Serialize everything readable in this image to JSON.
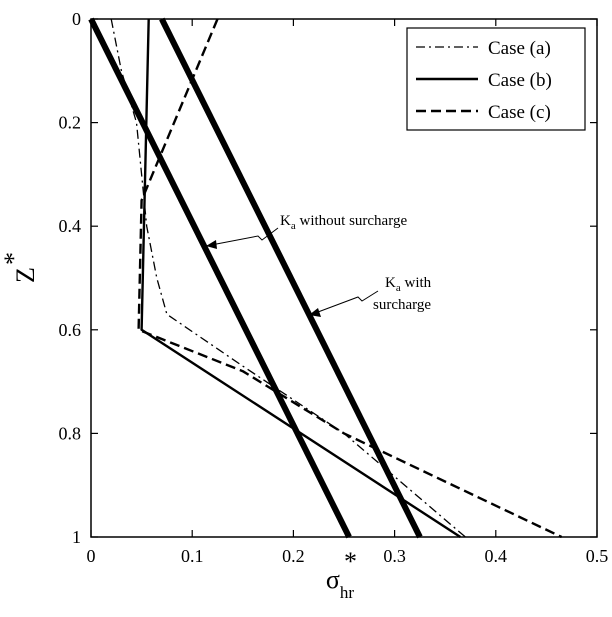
{
  "chart_data": {
    "type": "line",
    "xlabel": "σ",
    "xlabel_super": "*",
    "xlabel_sub": "hr",
    "ylabel": "Z",
    "ylabel_super": "*",
    "xlim": [
      0,
      0.5
    ],
    "ylim": [
      0,
      1
    ],
    "y_inverted": true,
    "x_ticks": [
      0,
      0.1,
      0.2,
      0.3,
      0.4,
      0.5
    ],
    "x_tick_labels": [
      "0",
      "0.1",
      "0.2",
      "0.3",
      "0.4",
      "0.5"
    ],
    "y_ticks": [
      0,
      0.2,
      0.4,
      0.6,
      0.8,
      1
    ],
    "y_tick_labels": [
      "0",
      "0.2",
      "0.4",
      "0.6",
      "0.8",
      "1"
    ],
    "grid": false,
    "legend_position": "top-right",
    "series": [
      {
        "name": "Case (a)",
        "style": "dashdot",
        "x": [
          0.02,
          0.03,
          0.045,
          0.05,
          0.055,
          0.065,
          0.075,
          0.15,
          0.25,
          0.37
        ],
        "y": [
          0,
          0.1,
          0.2,
          0.3,
          0.4,
          0.5,
          0.57,
          0.67,
          0.8,
          1.0
        ]
      },
      {
        "name": "Case (b)",
        "style": "solid",
        "x": [
          0.057,
          0.05,
          0.365
        ],
        "y": [
          0,
          0.6,
          1.0
        ]
      },
      {
        "name": "Case (c)",
        "style": "dashed",
        "x": [
          0.125,
          0.05,
          0.047,
          0.15,
          0.25,
          0.465
        ],
        "y": [
          0,
          0.35,
          0.6,
          0.68,
          0.8,
          1.0
        ]
      },
      {
        "name": "",
        "style": "thick",
        "x": [
          0,
          0.255
        ],
        "y": [
          0,
          1.0
        ]
      },
      {
        "name": "",
        "style": "thick",
        "x": [
          0.07,
          0.325
        ],
        "y": [
          0,
          1.0
        ]
      }
    ],
    "annotations": [
      {
        "main": "K",
        "sub": "a",
        "rest": " without surcharge",
        "line2": ""
      },
      {
        "main": "K",
        "sub": "a",
        "rest": " with",
        "line2": "surcharge"
      }
    ]
  }
}
